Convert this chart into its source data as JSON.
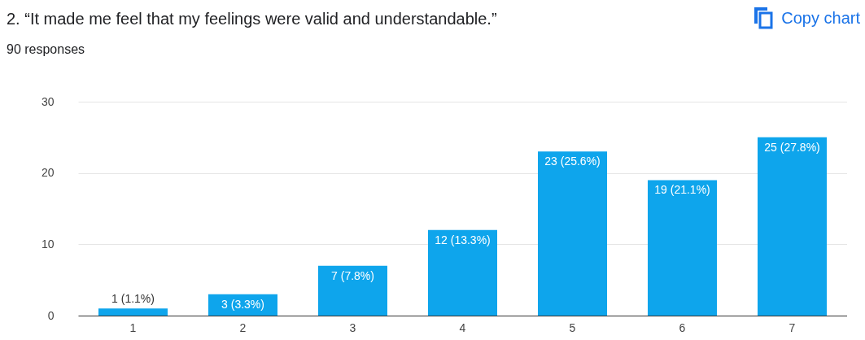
{
  "chart_data": {
    "type": "bar",
    "title": "2. “It made me feel that my feelings were valid and understandable.”",
    "subtitle": "90 responses",
    "annotations": [
      "Copy chart"
    ],
    "categories": [
      "1",
      "2",
      "3",
      "4",
      "5",
      "6",
      "7"
    ],
    "values": [
      1,
      3,
      7,
      12,
      23,
      19,
      25
    ],
    "value_labels": [
      "1 (1.1%)",
      "3 (3.3%)",
      "7 (7.8%)",
      "12 (13.3%)",
      "23 (25.6%)",
      "19 (21.1%)",
      "25 (27.8%)"
    ],
    "color": "#0ea5ec",
    "ylim": [
      0,
      30
    ],
    "yticks": [
      0,
      10,
      20,
      30
    ],
    "grid": "y"
  }
}
